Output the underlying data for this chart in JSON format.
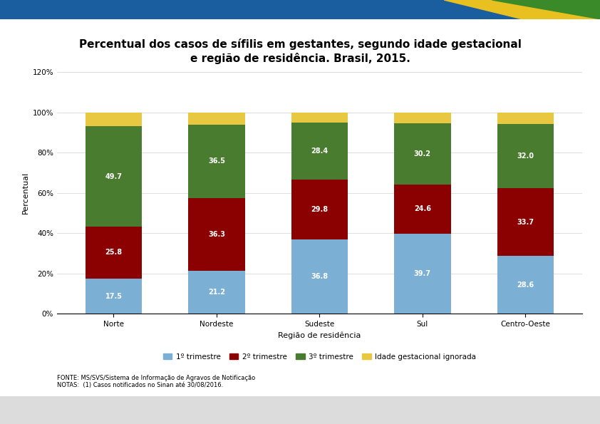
{
  "title_line1": "Percentual dos casos de sífilis em gestantes, segundo idade gestacional",
  "title_line2": "e região de residência. Brasil, 2015.",
  "xlabel": "Região de residência",
  "ylabel": "Percentual",
  "categories": [
    "Norte",
    "Nordeste",
    "Sudeste",
    "Sul",
    "Centro-Oeste"
  ],
  "trim1": [
    17.5,
    21.2,
    36.8,
    39.7,
    28.6
  ],
  "trim2": [
    25.8,
    36.3,
    29.8,
    24.6,
    33.7
  ],
  "trim3": [
    49.7,
    36.5,
    28.4,
    30.2,
    32.0
  ],
  "color_trim1": "#7BAFD4",
  "color_trim2": "#8B0000",
  "color_trim3": "#4A7C2F",
  "color_ignored": "#E8C840",
  "legend_labels": [
    "1º trimestre",
    "2º trimestre",
    "3º trimestre",
    "Idade gestacional ignorada"
  ],
  "fonte_text": "FONTE: MS/SVS/Sistema de Informação de Agravos de Notificação",
  "notas_text": "NOTAS:  (1) Casos notificados no Sinan até 30/08/2016.",
  "yticks": [
    0,
    20,
    40,
    60,
    80,
    100,
    120
  ],
  "yticklabels": [
    "0%",
    "20%",
    "40%",
    "60%",
    "80%",
    "100%",
    "120%"
  ],
  "header_blue": "#1B5EA0",
  "header_yellow": "#E8C020",
  "header_green": "#3A8A2A",
  "bg_color": "#ffffff",
  "bar_width": 0.55,
  "label_fontsize": 7.0,
  "tick_fontsize": 7.5,
  "axis_label_fontsize": 8.0,
  "title_fontsize": 11.0,
  "legend_fontsize": 7.5,
  "fonte_fontsize": 6.0
}
